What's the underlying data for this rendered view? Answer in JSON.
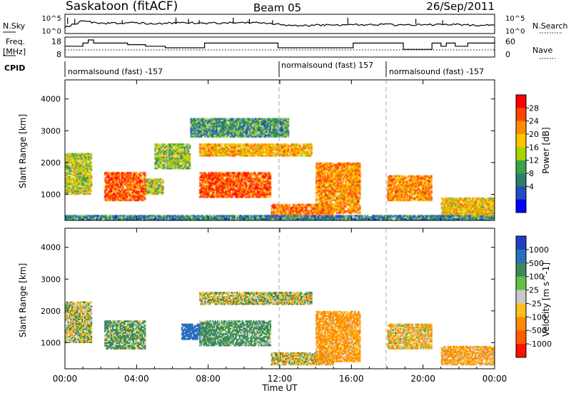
{
  "header": {
    "station": "Saskatoon (fitACF)",
    "beam": "Beam 05",
    "date": "26/Sep/2011"
  },
  "nsky_panel": {
    "left_label": "N.Sky",
    "left_ticks": [
      "10^5",
      "10^0"
    ],
    "right_label": "N.Search",
    "right_ticks": [
      "10^5",
      "10^0"
    ]
  },
  "freq_panel": {
    "left_label_1": "Freq.",
    "left_label_2": "[MHz]",
    "left_ticks": [
      "18",
      "8"
    ],
    "right_label": "Nave",
    "right_ticks": [
      "60",
      "0"
    ]
  },
  "cpid": {
    "label": "CPID",
    "segments": [
      {
        "text": "normalsound (fast) -157",
        "start_hour": 0
      },
      {
        "text": "normalsound (fast) 157",
        "start_hour": 12
      },
      {
        "text": "normalsound (fast) -157",
        "start_hour": 18
      }
    ]
  },
  "x_axis": {
    "label": "Time UT",
    "tick_labels": [
      "00:00",
      "04:00",
      "08:00",
      "12:00",
      "16:00",
      "20:00",
      "00:00"
    ],
    "range_hours": [
      0,
      24
    ]
  },
  "power_panel": {
    "ylabel": "Slant Range [km]",
    "y_ticks": [
      "1000",
      "2000",
      "3000",
      "4000"
    ],
    "colorbar_label": "Power [dB]",
    "colorbar_ticks": [
      "28",
      "24",
      "20",
      "16",
      "12",
      "8",
      "4"
    ],
    "colors": [
      "#ff0000",
      "#ff4500",
      "#ff8c00",
      "#ffc400",
      "#a8d400",
      "#3aa34a",
      "#2a7f6f",
      "#1f4fbf",
      "#0000ff"
    ]
  },
  "velocity_panel": {
    "ylabel": "Slant Range [km]",
    "y_ticks": [
      "1000",
      "2000",
      "3000",
      "4000"
    ],
    "colorbar_label": "Velocity [m s^-1]",
    "colorbar_ticks": [
      "1000",
      "500",
      "100",
      "25",
      "-25",
      "-100",
      "-500",
      "-1000"
    ],
    "colors": [
      "#1f3fbf",
      "#2a6fbf",
      "#3a8a5a",
      "#60c040",
      "#c8c8c8",
      "#ffc020",
      "#ff8c00",
      "#ff5a00",
      "#ff1000"
    ]
  },
  "chart_data": [
    {
      "type": "line",
      "title": "N.Sky",
      "ylim_log10": [
        0,
        5
      ],
      "x_hours": [
        0,
        1,
        2,
        3,
        4,
        5,
        6,
        7,
        8,
        9,
        10,
        11,
        12,
        13,
        14,
        15,
        16,
        17,
        18,
        19,
        20,
        21,
        22,
        23,
        24
      ],
      "values_log10": [
        1.5,
        3.5,
        2.8,
        2.9,
        3.0,
        2.6,
        2.9,
        3.0,
        2.8,
        2.9,
        3.0,
        3.1,
        2.5,
        2.0,
        2.2,
        2.3,
        2.4,
        2.3,
        2.4,
        2.2,
        2.5,
        2.3,
        2.4,
        2.2,
        2.3
      ]
    },
    {
      "type": "line",
      "title": "Freq. [MHz]",
      "ylim": [
        8,
        18
      ],
      "x_hours": [
        0,
        0.7,
        1.0,
        1.3,
        1.6,
        1.9,
        3.5,
        4.5,
        5.6,
        7.2,
        7.8,
        11.9,
        16.1,
        18.9,
        20.5,
        21.0,
        21.3,
        21.8,
        22.5,
        24
      ],
      "values": [
        14,
        14,
        16,
        18,
        16,
        16,
        15,
        14,
        13,
        13,
        16,
        13,
        16,
        12,
        16,
        14,
        16,
        14,
        16,
        17
      ]
    },
    {
      "type": "heatmap",
      "title": "Power [dB]",
      "xlabel": "Time UT",
      "ylabel": "Slant Range [km]",
      "xlim_hours": [
        0,
        24
      ],
      "ylim_km": [
        180,
        4600
      ],
      "zlim_db": [
        0,
        32
      ],
      "echo_regions": [
        {
          "t": [
            0.0,
            1.5
          ],
          "range_km": [
            1000,
            2300
          ],
          "power_db": 16
        },
        {
          "t": [
            2.2,
            4.5
          ],
          "range_km": [
            800,
            1700
          ],
          "power_db": 28
        },
        {
          "t": [
            4.5,
            5.5
          ],
          "range_km": [
            1000,
            1500
          ],
          "power_db": 16
        },
        {
          "t": [
            7.5,
            11.5
          ],
          "range_km": [
            900,
            1700
          ],
          "power_db": 28
        },
        {
          "t": [
            5.0,
            7.0
          ],
          "range_km": [
            1800,
            2600
          ],
          "power_db": 14
        },
        {
          "t": [
            7.5,
            13.8
          ],
          "range_km": [
            2200,
            2600
          ],
          "power_db": 22
        },
        {
          "t": [
            7.0,
            12.5
          ],
          "range_km": [
            2800,
            3400
          ],
          "power_db": 10
        },
        {
          "t": [
            11.5,
            15.0
          ],
          "range_km": [
            300,
            700
          ],
          "power_db": 26
        },
        {
          "t": [
            14.0,
            16.5
          ],
          "range_km": [
            400,
            2000
          ],
          "power_db": 24
        },
        {
          "t": [
            18.0,
            20.5
          ],
          "range_km": [
            800,
            1600
          ],
          "power_db": 24
        },
        {
          "t": [
            21.0,
            24.0
          ],
          "range_km": [
            300,
            900
          ],
          "power_db": 20
        },
        {
          "t": [
            0.0,
            24.0
          ],
          "range_km": [
            180,
            350
          ],
          "power_db": 8
        }
      ]
    },
    {
      "type": "heatmap",
      "title": "Velocity [m s^-1]",
      "xlabel": "Time UT",
      "ylabel": "Slant Range [km]",
      "xlim_hours": [
        0,
        24
      ],
      "ylim_km": [
        180,
        4600
      ],
      "zlim_ms": [
        -1000,
        1000
      ],
      "echo_regions": [
        {
          "t": [
            0.0,
            1.5
          ],
          "range_km": [
            1000,
            2300
          ],
          "velocity_ms": 0
        },
        {
          "t": [
            2.2,
            4.5
          ],
          "range_km": [
            800,
            1700
          ],
          "velocity_ms": 80
        },
        {
          "t": [
            6.5,
            8.0
          ],
          "range_km": [
            1100,
            1600
          ],
          "velocity_ms": 600
        },
        {
          "t": [
            7.5,
            11.5
          ],
          "range_km": [
            900,
            1700
          ],
          "velocity_ms": 120
        },
        {
          "t": [
            7.5,
            13.8
          ],
          "range_km": [
            2200,
            2600
          ],
          "velocity_ms": 0
        },
        {
          "t": [
            11.5,
            15.0
          ],
          "range_km": [
            300,
            700
          ],
          "velocity_ms": -30
        },
        {
          "t": [
            14.0,
            16.5
          ],
          "range_km": [
            400,
            2000
          ],
          "velocity_ms": -150
        },
        {
          "t": [
            18.0,
            20.5
          ],
          "range_km": [
            800,
            1600
          ],
          "velocity_ms": -80
        },
        {
          "t": [
            21.0,
            24.0
          ],
          "range_km": [
            300,
            900
          ],
          "velocity_ms": -120
        }
      ]
    }
  ]
}
